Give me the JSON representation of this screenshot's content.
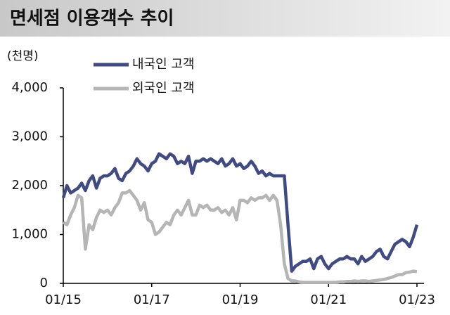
{
  "chart_data": {
    "type": "line",
    "title": "면세점 이용객수 추이",
    "ylabel": "(천명)",
    "categories": [
      "01/15",
      null,
      null,
      null,
      null,
      null,
      null,
      null,
      null,
      null,
      null,
      null,
      null,
      null,
      null,
      null,
      null,
      null,
      null,
      null,
      null,
      null,
      null,
      null,
      "01/17",
      null,
      null,
      null,
      null,
      null,
      null,
      null,
      null,
      null,
      null,
      null,
      null,
      null,
      null,
      null,
      null,
      null,
      null,
      null,
      null,
      null,
      null,
      null,
      "01/19",
      null,
      null,
      null,
      null,
      null,
      null,
      null,
      null,
      null,
      null,
      null,
      null,
      null,
      null,
      null,
      null,
      null,
      null,
      null,
      null,
      null,
      null,
      null,
      "01/21",
      null,
      null,
      null,
      null,
      null,
      null,
      null,
      null,
      null,
      null,
      null,
      null,
      null,
      null,
      null,
      null,
      null,
      null,
      null,
      null,
      null,
      null,
      null,
      "01/23"
    ],
    "series": [
      {
        "name": "내국인 고객",
        "color": "#3f4b82",
        "values": [
          1750,
          2000,
          1850,
          1900,
          1950,
          2050,
          1900,
          2100,
          2200,
          1950,
          2150,
          2200,
          2200,
          2250,
          2350,
          2150,
          2100,
          2250,
          2300,
          2400,
          2550,
          2450,
          2400,
          2300,
          2450,
          2500,
          2650,
          2600,
          2550,
          2650,
          2600,
          2450,
          2500,
          2450,
          2600,
          2250,
          2500,
          2500,
          2550,
          2500,
          2550,
          2500,
          2450,
          2550,
          2400,
          2450,
          2550,
          2400,
          2450,
          2350,
          2400,
          2500,
          2400,
          2250,
          2300,
          2200,
          2250,
          2200,
          2200,
          2200,
          2200,
          1200,
          250,
          350,
          400,
          450,
          450,
          500,
          300,
          500,
          550,
          400,
          300,
          400,
          450,
          500,
          500,
          550,
          500,
          500,
          400,
          550,
          450,
          500,
          550,
          650,
          700,
          550,
          500,
          650,
          800,
          850,
          900,
          850,
          750,
          950,
          1200
        ]
      },
      {
        "name": "외국인 고객",
        "color": "#b5b5b5",
        "values": [
          1250,
          1200,
          1400,
          1550,
          1800,
          1750,
          700,
          1200,
          1100,
          1350,
          1500,
          1450,
          1500,
          1400,
          1550,
          1650,
          1850,
          1850,
          1900,
          1800,
          1700,
          1500,
          1650,
          1300,
          1250,
          1000,
          1050,
          1150,
          1250,
          1200,
          1400,
          1500,
          1400,
          1550,
          1700,
          1400,
          1400,
          1600,
          1550,
          1600,
          1500,
          1500,
          1550,
          1450,
          1500,
          1400,
          1550,
          1300,
          1700,
          1700,
          1650,
          1750,
          1700,
          1750,
          1750,
          1800,
          1700,
          1800,
          1700,
          1200,
          400,
          100,
          50,
          50,
          30,
          20,
          20,
          20,
          20,
          20,
          20,
          20,
          20,
          20,
          20,
          30,
          30,
          40,
          40,
          50,
          40,
          50,
          50,
          40,
          50,
          60,
          70,
          80,
          100,
          120,
          150,
          180,
          180,
          220,
          230,
          250,
          240
        ]
      }
    ],
    "ylim": [
      0,
      4000
    ],
    "yticks": [
      0,
      {
        "value": 1000,
        "label": "1,000"
      },
      {
        "value": 2000,
        "label": "2,000"
      },
      {
        "value": 3000,
        "label": "3,000"
      },
      {
        "value": 4000,
        "label": "4,000"
      }
    ]
  }
}
